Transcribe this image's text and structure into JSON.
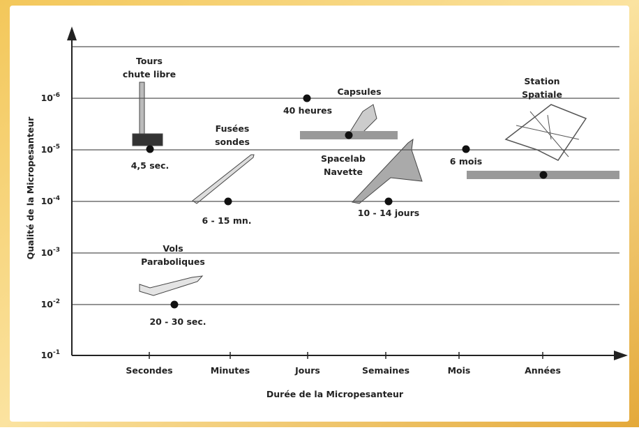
{
  "axes": {
    "y_label": "Qualité de la Micropesanteur",
    "x_label": "Durée de la Micropesanteur",
    "y_ticks": [
      {
        "base": "10",
        "exponent": "-6"
      },
      {
        "base": "10",
        "exponent": "-5"
      },
      {
        "base": "10",
        "exponent": "-4"
      },
      {
        "base": "10",
        "exponent": "-3"
      },
      {
        "base": "10",
        "exponent": "-2"
      },
      {
        "base": "10",
        "exponent": "-1"
      }
    ],
    "x_categories": [
      "Secondes",
      "Minutes",
      "Jours",
      "Semaines",
      "Mois",
      "Années"
    ]
  },
  "platforms": [
    {
      "name": [
        "Tours",
        "chute libre"
      ],
      "duration": "4,5 sec."
    },
    {
      "name": [
        "Fusées",
        "sondes"
      ],
      "duration": "6 - 15 mn."
    },
    {
      "name": [
        "Vols",
        "Paraboliques"
      ],
      "duration": "20 - 30 sec."
    },
    {
      "name": [
        "Capsules"
      ],
      "duration": "40 heures"
    },
    {
      "name": [
        "Spacelab",
        "Navette"
      ],
      "duration": "10 - 14 jours"
    },
    {
      "name": [
        "Station",
        "Spatiale"
      ],
      "duration": "6 mois"
    }
  ]
}
